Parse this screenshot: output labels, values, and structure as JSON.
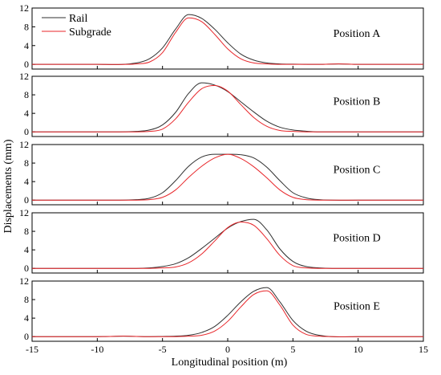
{
  "chart_data": {
    "type": "line",
    "xlabel": "Longitudinal position (m)",
    "ylabel": "Displacements (mm)",
    "xlim": [
      -15,
      15
    ],
    "x_ticks": [
      -15,
      -10,
      -5,
      0,
      5,
      10,
      15
    ],
    "ylim": [
      -1,
      12
    ],
    "y_ticks": [
      0,
      4,
      8,
      12
    ],
    "grid": false,
    "legend": {
      "placement": "top-left of first panel",
      "entries": [
        "Rail",
        "Subgrade"
      ]
    },
    "colors": {
      "Rail": "#2f2f2f",
      "Subgrade": "#e8262a"
    },
    "panels": [
      {
        "label": "Position A",
        "series": [
          {
            "name": "Rail",
            "x": [
              -15,
              -10,
              -7,
              -6,
              -5,
              -4,
              -3,
              -2,
              -1,
              0,
              1,
              2,
              3,
              4,
              5,
              7,
              8.5,
              10,
              15
            ],
            "values": [
              0,
              0,
              0.3,
              1.2,
              3.5,
              7.5,
              10.6,
              9.8,
              7.5,
              4.6,
              2.2,
              0.9,
              0.3,
              0.1,
              0.05,
              0,
              0.1,
              0,
              0
            ]
          },
          {
            "name": "Subgrade",
            "x": [
              -15,
              -10,
              -7,
              -6,
              -5,
              -4,
              -3,
              -2,
              -1,
              0,
              1,
              2,
              3,
              4,
              5,
              7,
              8.5,
              10,
              15
            ],
            "values": [
              0,
              0,
              0.1,
              0.5,
              2.5,
              6.8,
              9.9,
              9.1,
              6.4,
              3.3,
              1.2,
              0.3,
              0.1,
              0,
              0,
              0,
              0.1,
              0,
              0
            ]
          }
        ]
      },
      {
        "label": "Position B",
        "series": [
          {
            "name": "Rail",
            "x": [
              -15,
              -10,
              -7,
              -6,
              -5,
              -4,
              -3,
              -2,
              -1,
              0,
              1,
              2,
              3,
              4,
              5,
              6,
              7,
              10,
              15
            ],
            "values": [
              0,
              0,
              0.1,
              0.4,
              1.5,
              4.2,
              8.3,
              10.6,
              10.1,
              8.7,
              6.5,
              4.3,
              2.3,
              1,
              0.4,
              0.15,
              0,
              0,
              0
            ]
          },
          {
            "name": "Subgrade",
            "x": [
              -15,
              -10,
              -7,
              -6,
              -5,
              -4,
              -3,
              -2,
              -1,
              0,
              1,
              2,
              3,
              4,
              5,
              6,
              7,
              10,
              15
            ],
            "values": [
              0,
              0,
              0,
              0.1,
              0.6,
              2.8,
              6.4,
              9.3,
              10.0,
              8.8,
              5.9,
              3.1,
              1.2,
              0.3,
              0.1,
              0,
              0,
              0,
              0
            ]
          }
        ]
      },
      {
        "label": "Position C",
        "series": [
          {
            "name": "Rail",
            "x": [
              -15,
              -10,
              -7,
              -6,
              -5,
              -4,
              -3,
              -2,
              -1,
              0,
              1,
              2,
              3,
              4,
              5,
              6,
              7,
              10,
              15
            ],
            "values": [
              0,
              0,
              0.1,
              0.4,
              1.6,
              4.2,
              7.3,
              9.3,
              9.9,
              9.9,
              9.8,
              9.1,
              7.1,
              4.2,
              1.6,
              0.5,
              0.1,
              0,
              0
            ]
          },
          {
            "name": "Subgrade",
            "x": [
              -15,
              -10,
              -7,
              -6,
              -5,
              -4,
              -3,
              -2,
              -1,
              0,
              1,
              2,
              3,
              4,
              5,
              6,
              7,
              10,
              15
            ],
            "values": [
              0,
              0,
              0,
              0.1,
              0.6,
              2.2,
              4.9,
              7.3,
              9.1,
              9.9,
              9.0,
              7.2,
              4.8,
              2.2,
              0.6,
              0.1,
              0,
              0,
              0
            ]
          }
        ]
      },
      {
        "label": "Position D",
        "series": [
          {
            "name": "Rail",
            "x": [
              -15,
              -10,
              -7,
              -6,
              -5,
              -4,
              -3,
              -2,
              -1,
              0,
              1,
              2,
              3,
              4,
              5,
              6,
              7,
              8,
              10,
              15
            ],
            "values": [
              0,
              0,
              0,
              0.1,
              0.4,
              1,
              2.3,
              4.3,
              6.5,
              8.7,
              10.1,
              10.6,
              8.3,
              4.2,
              1.5,
              0.4,
              0.1,
              0,
              0,
              0
            ]
          },
          {
            "name": "Subgrade",
            "x": [
              -15,
              -10,
              -7,
              -6,
              -5,
              -4,
              -3,
              -2,
              -1,
              0,
              1,
              2,
              3,
              4,
              5,
              6,
              7,
              8,
              10,
              15
            ],
            "values": [
              0,
              0,
              0,
              0,
              0.1,
              0.3,
              1.2,
              3.1,
              5.9,
              8.8,
              10.0,
              9.3,
              6.4,
              2.8,
              0.6,
              0.1,
              0,
              0,
              0,
              0
            ]
          }
        ]
      },
      {
        "label": "Position E",
        "series": [
          {
            "name": "Rail",
            "x": [
              -15,
              -10,
              -8,
              -6,
              -5,
              -4,
              -3,
              -2,
              -1,
              0,
              1,
              2,
              3,
              4,
              5,
              6,
              7,
              10,
              15
            ],
            "values": [
              0,
              0,
              0.1,
              0,
              0.05,
              0.1,
              0.3,
              0.9,
              2.2,
              4.6,
              7.5,
              9.8,
              10.6,
              7.5,
              3.5,
              1.2,
              0.3,
              0,
              0
            ]
          },
          {
            "name": "Subgrade",
            "x": [
              -15,
              -10,
              -8,
              -6,
              -5,
              -4,
              -3,
              -2,
              -1,
              0,
              1,
              2,
              3,
              4,
              5,
              6,
              7,
              10,
              15
            ],
            "values": [
              0,
              0,
              0.1,
              0,
              0,
              0,
              0.1,
              0.3,
              1.2,
              3.3,
              6.4,
              9.1,
              9.9,
              6.8,
              2.5,
              0.5,
              0.1,
              0,
              0
            ]
          }
        ]
      }
    ]
  }
}
